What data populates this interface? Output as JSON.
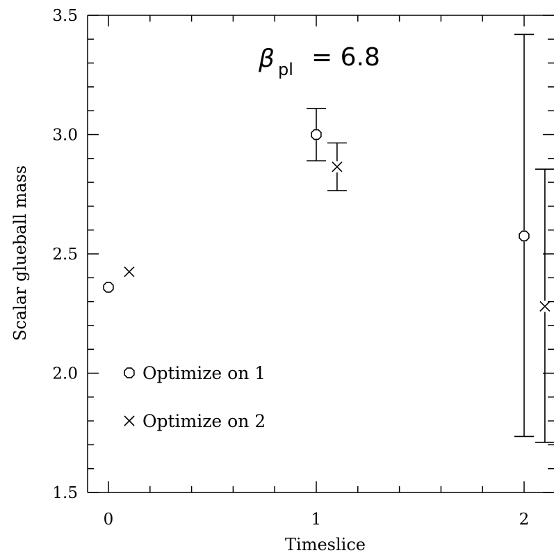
{
  "chart_data": {
    "type": "scatter",
    "title": {
      "symbol": "β",
      "subscript": "pl",
      "text": "= 6.8"
    },
    "xlabel": "Timeslice",
    "ylabel": "Scalar glueball mass",
    "xlim": [
      -0.1,
      2.15
    ],
    "ylim": [
      1.5,
      3.5
    ],
    "x_ticks": [
      "0",
      "1",
      "2"
    ],
    "y_ticks": [
      "1.5",
      "2.0",
      "2.5",
      "3.0",
      "3.5"
    ],
    "series": [
      {
        "name": "Optimize on 1",
        "marker": "hexagon",
        "points": [
          {
            "x": 0.0,
            "y": 2.36,
            "err_lo": null,
            "err_hi": null
          },
          {
            "x": 1.0,
            "y": 3.0,
            "err_lo": 2.89,
            "err_hi": 3.11
          },
          {
            "x": 2.0,
            "y": 2.575,
            "err_lo": 1.735,
            "err_hi": 3.42
          }
        ]
      },
      {
        "name": "Optimize on 2",
        "marker": "cross",
        "points": [
          {
            "x": 0.1,
            "y": 2.425,
            "err_lo": null,
            "err_hi": null
          },
          {
            "x": 1.1,
            "y": 2.865,
            "err_lo": 2.765,
            "err_hi": 2.965
          },
          {
            "x": 2.1,
            "y": 2.28,
            "err_lo": 1.71,
            "err_hi": 2.855
          }
        ]
      }
    ],
    "legend": {
      "placement": "lower-left",
      "entries": [
        "Optimize on 1",
        "Optimize on 2"
      ]
    }
  }
}
